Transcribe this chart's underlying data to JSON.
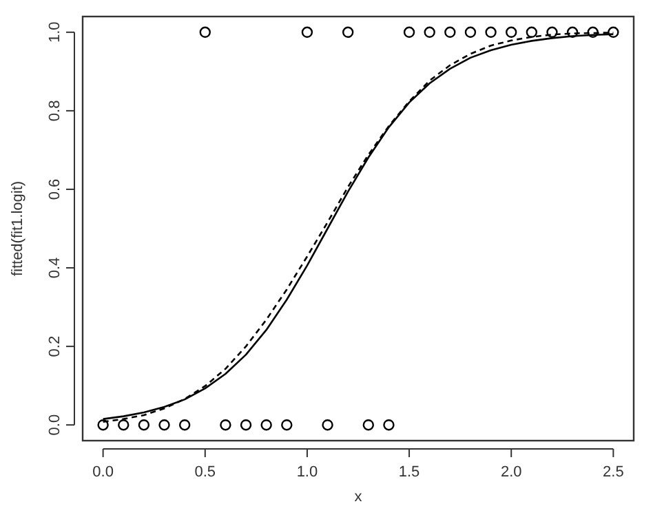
{
  "chart_data": {
    "type": "scatter",
    "xlabel": "x",
    "ylabel": "fitted(fit1.logit)",
    "xlim": [
      -0.1,
      2.6
    ],
    "ylim": [
      -0.04,
      1.04
    ],
    "xticks": [
      {
        "value": 0,
        "label": "0.0"
      },
      0.5,
      {
        "value": 1,
        "label": "1.0"
      },
      1.5,
      {
        "value": 2,
        "label": "2.0"
      },
      2.5
    ],
    "yticks": [
      {
        "value": 0,
        "label": "0.0"
      },
      0.2,
      0.4,
      0.6,
      0.8,
      {
        "value": 1,
        "label": "1.0"
      }
    ],
    "grid": false,
    "legend": false,
    "series": [
      {
        "color": "#000000",
        "marker": "circle",
        "x": [
          0,
          0.1,
          0.2,
          0.3,
          0.4,
          0.5,
          0.6,
          0.7,
          0.8,
          0.9,
          1.0,
          1.1,
          1.2,
          1.3,
          1.4,
          1.5,
          1.6,
          1.7,
          1.8,
          1.9,
          2.0,
          2.1,
          2.2,
          2.3,
          2.4,
          2.5
        ],
        "values": [
          0,
          0,
          0,
          0,
          0,
          1,
          0,
          0,
          0,
          0,
          1,
          0,
          1,
          0,
          0,
          1,
          1,
          1,
          1,
          1,
          1,
          1,
          1,
          1,
          1,
          1
        ]
      },
      {
        "type": "line",
        "color": "#000000",
        "line_style": "solid",
        "x": [
          0,
          0.1,
          0.2,
          0.3,
          0.4,
          0.5,
          0.6,
          0.7,
          0.8,
          0.9,
          1.0,
          1.1,
          1.2,
          1.3,
          1.4,
          1.5,
          1.6,
          1.7,
          1.8,
          1.9,
          2.0,
          2.1,
          2.2,
          2.3,
          2.4,
          2.5
        ],
        "values": [
          0.015,
          0.022,
          0.032,
          0.046,
          0.065,
          0.093,
          0.13,
          0.179,
          0.242,
          0.319,
          0.406,
          0.5,
          0.594,
          0.681,
          0.758,
          0.821,
          0.87,
          0.907,
          0.935,
          0.954,
          0.968,
          0.978,
          0.985,
          0.99,
          0.993,
          0.995
        ]
      },
      {
        "type": "line",
        "color": "#000000",
        "line_style": "dashed",
        "x": [
          0,
          0.1,
          0.2,
          0.3,
          0.4,
          0.5,
          0.6,
          0.7,
          0.8,
          0.9,
          1.0,
          1.1,
          1.2,
          1.3,
          1.4,
          1.5,
          1.6,
          1.7,
          1.8,
          1.9,
          2.0,
          2.1,
          2.2,
          2.3,
          2.4,
          2.5
        ],
        "values": [
          0.008,
          0.015,
          0.025,
          0.042,
          0.066,
          0.099,
          0.143,
          0.2,
          0.268,
          0.345,
          0.429,
          0.516,
          0.606,
          0.688,
          0.761,
          0.824,
          0.877,
          0.916,
          0.945,
          0.966,
          0.979,
          0.988,
          0.994,
          0.997,
          0.998,
          0.999
        ]
      }
    ]
  }
}
